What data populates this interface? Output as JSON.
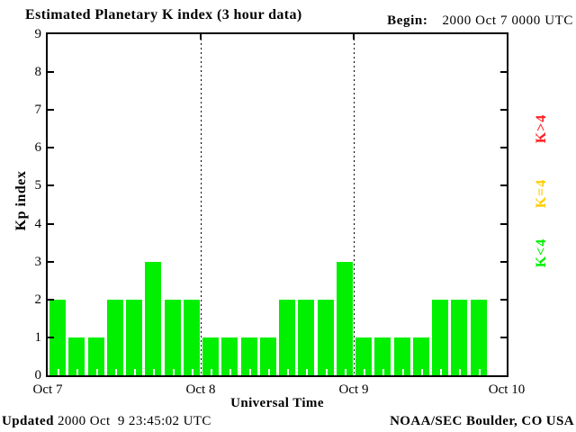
{
  "header": {
    "title": "Estimated Planetary K index (3 hour data)",
    "begin_label": "Begin:",
    "begin_value": "2000 Oct 7 0000 UTC"
  },
  "axes": {
    "ylabel": "Kp index",
    "xlabel": "Universal Time"
  },
  "legend": {
    "items": [
      {
        "label": "K>4",
        "color": "#ff2020"
      },
      {
        "label": "K=4",
        "color": "#ffcc00"
      },
      {
        "label": "K<4",
        "color": "#00f000"
      }
    ]
  },
  "footer": {
    "updated_label": "Updated",
    "updated_value": " 2000 Oct  9 23:45:02 UTC",
    "credit": "NOAA/SEC Boulder, CO USA"
  },
  "chart_data": {
    "type": "bar",
    "title": "Estimated Planetary K index (3 hour data)",
    "xlabel": "Universal Time",
    "ylabel": "Kp index",
    "ylim": [
      0,
      9
    ],
    "y_ticks": [
      0,
      1,
      2,
      3,
      4,
      5,
      6,
      7,
      8,
      9
    ],
    "x_tick_labels": [
      "Oct 7",
      "Oct 8",
      "Oct 9",
      "Oct 10"
    ],
    "begin_utc": "2000 Oct 7 0000 UTC",
    "updated_utc": "2000 Oct 9 23:45:02 UTC",
    "interval_hours": 3,
    "slots_per_day": 8,
    "grid": "dotted-vertical-at-day-boundaries",
    "legend_position": "right",
    "color_rules": [
      {
        "condition": "K<4",
        "color": "#00f000"
      },
      {
        "condition": "K=4",
        "color": "#ffcc00"
      },
      {
        "condition": "K>4",
        "color": "#ff2020"
      }
    ],
    "series": [
      {
        "date": "Oct 7",
        "values": [
          2,
          1,
          1,
          2,
          2,
          3,
          2,
          2
        ]
      },
      {
        "date": "Oct 8",
        "values": [
          1,
          1,
          1,
          1,
          2,
          2,
          2,
          3
        ]
      },
      {
        "date": "Oct 9",
        "values": [
          1,
          1,
          1,
          1,
          2,
          2,
          2
        ]
      }
    ]
  }
}
